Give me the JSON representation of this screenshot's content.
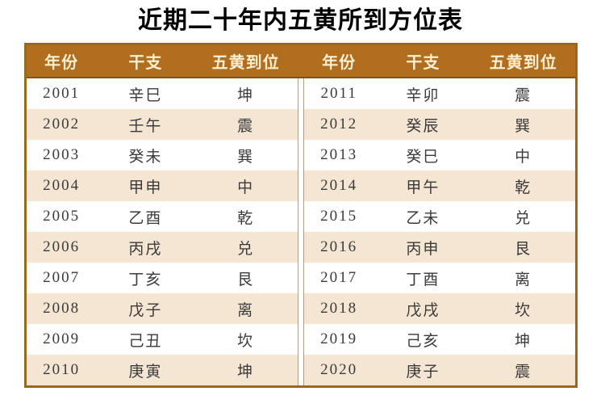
{
  "title": "近期二十年内五黄所到方位表",
  "colors": {
    "header_bg": "#B06E1E",
    "header_text": "#F8EFD3",
    "stripe_bg": "#F5E6D3",
    "row_bg": "#FFFFFF",
    "border": "#9C661E",
    "divider_line": "#AD9E86",
    "cell_text": "#3A3A3A"
  },
  "table": {
    "headers": {
      "year": "年份",
      "ganzhi": "干支",
      "wuhuang": "五黄到位"
    },
    "left_rows": [
      {
        "year": "2001",
        "ganzhi": "辛巳",
        "wuhuang": "坤"
      },
      {
        "year": "2002",
        "ganzhi": "壬午",
        "wuhuang": "震"
      },
      {
        "year": "2003",
        "ganzhi": "癸未",
        "wuhuang": "巽"
      },
      {
        "year": "2004",
        "ganzhi": "甲申",
        "wuhuang": "中"
      },
      {
        "year": "2005",
        "ganzhi": "乙酉",
        "wuhuang": "乾"
      },
      {
        "year": "2006",
        "ganzhi": "丙戌",
        "wuhuang": "兑"
      },
      {
        "year": "2007",
        "ganzhi": "丁亥",
        "wuhuang": "艮"
      },
      {
        "year": "2008",
        "ganzhi": "戊子",
        "wuhuang": "离"
      },
      {
        "year": "2009",
        "ganzhi": "己丑",
        "wuhuang": "坎"
      },
      {
        "year": "2010",
        "ganzhi": "庚寅",
        "wuhuang": "坤"
      }
    ],
    "right_rows": [
      {
        "year": "2011",
        "ganzhi": "辛卯",
        "wuhuang": "震"
      },
      {
        "year": "2012",
        "ganzhi": "癸辰",
        "wuhuang": "巽"
      },
      {
        "year": "2013",
        "ganzhi": "癸巳",
        "wuhuang": "中"
      },
      {
        "year": "2014",
        "ganzhi": "甲午",
        "wuhuang": "乾"
      },
      {
        "year": "2015",
        "ganzhi": "乙未",
        "wuhuang": "兑"
      },
      {
        "year": "2016",
        "ganzhi": "丙申",
        "wuhuang": "艮"
      },
      {
        "year": "2017",
        "ganzhi": "丁酉",
        "wuhuang": "离"
      },
      {
        "year": "2018",
        "ganzhi": "戊戌",
        "wuhuang": "坎"
      },
      {
        "year": "2019",
        "ganzhi": "己亥",
        "wuhuang": "坤"
      },
      {
        "year": "2020",
        "ganzhi": "庚子",
        "wuhuang": "震"
      }
    ]
  },
  "chart_data": {
    "type": "table",
    "title": "近期二十年内五黄所到方位表",
    "columns": [
      "年份",
      "干支",
      "五黄到位"
    ],
    "rows": [
      [
        "2001",
        "辛巳",
        "坤"
      ],
      [
        "2002",
        "壬午",
        "震"
      ],
      [
        "2003",
        "癸未",
        "巽"
      ],
      [
        "2004",
        "甲申",
        "中"
      ],
      [
        "2005",
        "乙酉",
        "乾"
      ],
      [
        "2006",
        "丙戌",
        "兑"
      ],
      [
        "2007",
        "丁亥",
        "艮"
      ],
      [
        "2008",
        "戊子",
        "离"
      ],
      [
        "2009",
        "己丑",
        "坎"
      ],
      [
        "2010",
        "庚寅",
        "坤"
      ],
      [
        "2011",
        "辛卯",
        "震"
      ],
      [
        "2012",
        "癸辰",
        "巽"
      ],
      [
        "2013",
        "癸巳",
        "中"
      ],
      [
        "2014",
        "甲午",
        "乾"
      ],
      [
        "2015",
        "乙未",
        "兑"
      ],
      [
        "2016",
        "丙申",
        "艮"
      ],
      [
        "2017",
        "丁酉",
        "离"
      ],
      [
        "2018",
        "戊戌",
        "坎"
      ],
      [
        "2019",
        "己亥",
        "坤"
      ],
      [
        "2020",
        "庚子",
        "震"
      ]
    ],
    "layout": "two side-by-side halves: 2001-2010 left, 2011-2020 right; alternating row stripes"
  }
}
